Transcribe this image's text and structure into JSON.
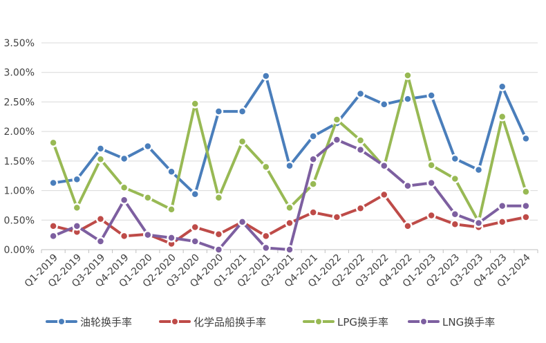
{
  "chart_data": {
    "type": "line",
    "title": "",
    "xlabel": "",
    "ylabel": "",
    "categories": [
      "Q1-2019",
      "Q2-2019",
      "Q3-2019",
      "Q4-2019",
      "Q1-2020",
      "Q2-2020",
      "Q3-2020",
      "Q4-2020",
      "Q1-2021",
      "Q2-2021",
      "Q3-2021",
      "Q4-2021",
      "Q1-2022",
      "Q2-2022",
      "Q3-2022",
      "Q4-2022",
      "Q1-2023",
      "Q2-2023",
      "Q3-2023",
      "Q4-2023",
      "Q1-2024"
    ],
    "ylim": [
      0,
      0.035
    ],
    "yticks": [
      0,
      0.005,
      0.01,
      0.015,
      0.02,
      0.025,
      0.03,
      0.035
    ],
    "ytick_labels": [
      "0.00%",
      "0.50%",
      "1.00%",
      "1.50%",
      "2.00%",
      "2.50%",
      "3.00%",
      "3.50%"
    ],
    "grid": "horizontal",
    "legend_position": "bottom",
    "series": [
      {
        "name": "油轮换手率",
        "color": "#4a7ebb",
        "values": [
          0.0113,
          0.0119,
          0.0171,
          0.0154,
          0.0175,
          0.0132,
          0.0094,
          0.0234,
          0.0234,
          0.0294,
          0.0142,
          0.0192,
          0.0214,
          0.0264,
          0.0246,
          0.0255,
          0.0261,
          0.0154,
          0.0135,
          0.0276,
          0.0188
        ]
      },
      {
        "name": "化学品船换手率",
        "color": "#be4b48",
        "values": [
          0.004,
          0.003,
          0.0052,
          0.0023,
          0.0026,
          0.001,
          0.0038,
          0.0026,
          0.0047,
          0.0023,
          0.0045,
          0.0063,
          0.0055,
          0.007,
          0.0093,
          0.004,
          0.0058,
          0.0043,
          0.0038,
          0.0047,
          0.0055
        ]
      },
      {
        "name": "LPG换手率",
        "color": "#98b954",
        "values": [
          0.0181,
          0.0071,
          0.0153,
          0.0105,
          0.0088,
          0.0068,
          0.0247,
          0.0088,
          0.0183,
          0.014,
          0.0071,
          0.0111,
          0.022,
          0.0185,
          0.014,
          0.0295,
          0.0143,
          0.012,
          0.0047,
          0.0225,
          0.0098
        ]
      },
      {
        "name": "LNG换手率",
        "color": "#7d5fa0",
        "values": [
          0.0023,
          0.004,
          0.0014,
          0.0084,
          0.0025,
          0.002,
          0.0014,
          0.0,
          0.0047,
          0.0003,
          0.0,
          0.0153,
          0.0186,
          0.0169,
          0.0142,
          0.0108,
          0.0113,
          0.006,
          0.0045,
          0.0074,
          0.0074
        ]
      }
    ]
  }
}
